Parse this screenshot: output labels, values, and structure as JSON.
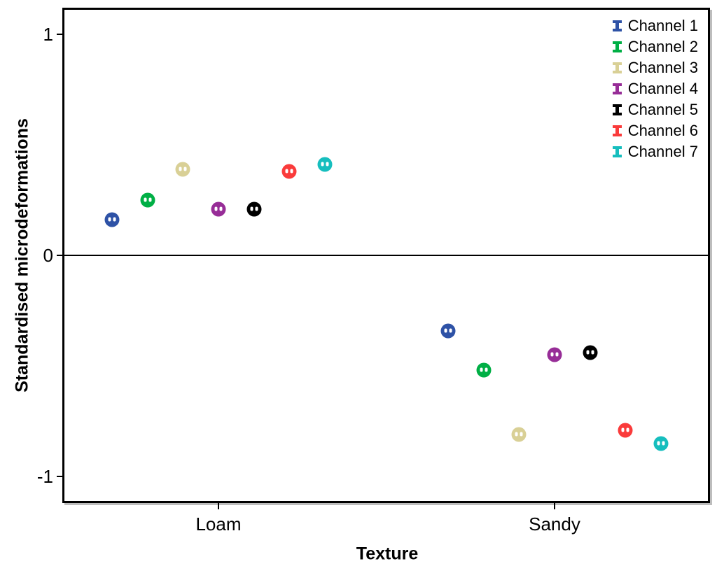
{
  "chart_data": {
    "type": "scatter",
    "title": "",
    "xlabel": "Texture",
    "ylabel": "Standardised microdeformations",
    "grid": false,
    "legend_position": "top-right-inside",
    "reference_line_y": 0,
    "ylim": [
      -1.11,
      1.11
    ],
    "y_ticks": [
      {
        "value": 1,
        "label": "1"
      },
      {
        "value": 0,
        "label": "0"
      },
      {
        "value": -1,
        "label": "-1"
      }
    ],
    "categories": [
      {
        "label": "Loam",
        "x_fraction": 0.2394
      },
      {
        "label": "Sandy",
        "x_fraction": 0.7617
      }
    ],
    "dodge_step_fraction": 0.0552,
    "series": [
      {
        "name": "Channel 1",
        "color": "#2e52a6",
        "values": [
          0.16,
          -0.34
        ]
      },
      {
        "name": "Channel 2",
        "color": "#00af45",
        "values": [
          0.25,
          -0.52
        ]
      },
      {
        "name": "Channel 3",
        "color": "#d9d096",
        "values": [
          0.39,
          -0.81
        ]
      },
      {
        "name": "Channel 4",
        "color": "#972d97",
        "values": [
          0.21,
          -0.45
        ]
      },
      {
        "name": "Channel 5",
        "color": "#000000",
        "values": [
          0.21,
          -0.44
        ]
      },
      {
        "name": "Channel 6",
        "color": "#fa3b3b",
        "values": [
          0.38,
          -0.79
        ]
      },
      {
        "name": "Channel 7",
        "color": "#16bebe",
        "values": [
          0.41,
          -0.85
        ]
      }
    ]
  }
}
